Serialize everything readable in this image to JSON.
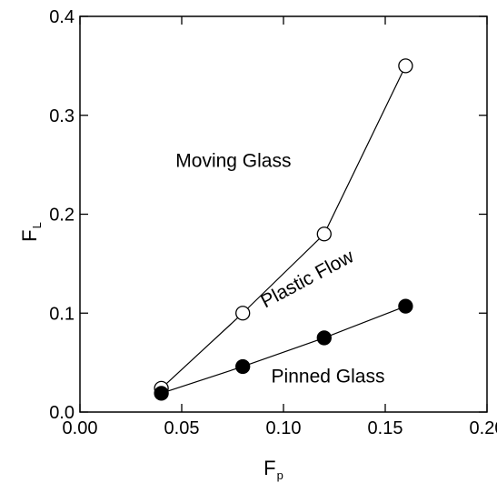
{
  "chart_data": {
    "type": "line",
    "title": "",
    "xlabel": {
      "main": "F",
      "sub": "p"
    },
    "ylabel": {
      "main": "F",
      "sub": "L"
    },
    "xlim": [
      0.0,
      0.2
    ],
    "ylim": [
      0.0,
      0.4
    ],
    "xticks": [
      0.0,
      0.05,
      0.1,
      0.15,
      0.2
    ],
    "yticks": [
      0.0,
      0.1,
      0.2,
      0.3,
      0.4
    ],
    "xtick_labels": [
      "0.00",
      "0.05",
      "0.10",
      "0.15",
      "0.20"
    ],
    "ytick_labels": [
      "0.0",
      "0.1",
      "0.2",
      "0.3",
      "0.4"
    ],
    "grid": false,
    "series": [
      {
        "marker": "open-circle",
        "color": "#000000",
        "x": [
          0.04,
          0.08,
          0.12,
          0.16
        ],
        "y": [
          0.024,
          0.1,
          0.18,
          0.35
        ]
      },
      {
        "marker": "filled-circle",
        "color": "#000000",
        "x": [
          0.04,
          0.08,
          0.12,
          0.16
        ],
        "y": [
          0.019,
          0.046,
          0.075,
          0.107
        ]
      }
    ],
    "annotations": [
      {
        "text": "Moving Glass",
        "x": 0.047,
        "y": 0.248,
        "rotation": 0
      },
      {
        "text": "Plastic Flow",
        "x": 0.091,
        "y": 0.105,
        "rotation": -28
      },
      {
        "text": "Pinned Glass",
        "x": 0.094,
        "y": 0.03,
        "rotation": 0
      }
    ]
  }
}
